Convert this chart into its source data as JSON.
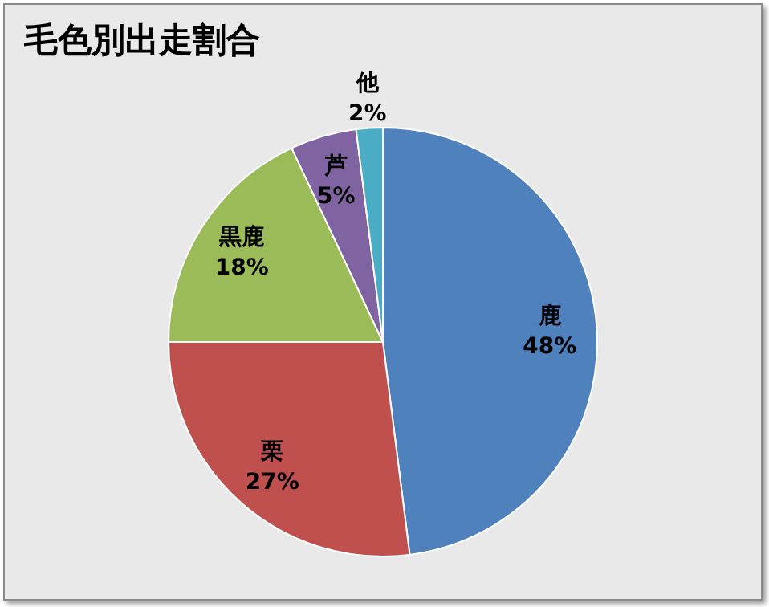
{
  "chart_data": {
    "type": "pie",
    "title": "毛色別出走割合",
    "categories": [
      "鹿",
      "栗",
      "黒鹿",
      "芦",
      "他"
    ],
    "values": [
      48,
      27,
      18,
      5,
      2
    ],
    "colors": [
      "#4f81bd",
      "#c0504d",
      "#9bbb59",
      "#8064a2",
      "#4bacc6"
    ],
    "value_labels": [
      "48%",
      "27%",
      "18%",
      "5%",
      "2%"
    ],
    "legend": false
  }
}
